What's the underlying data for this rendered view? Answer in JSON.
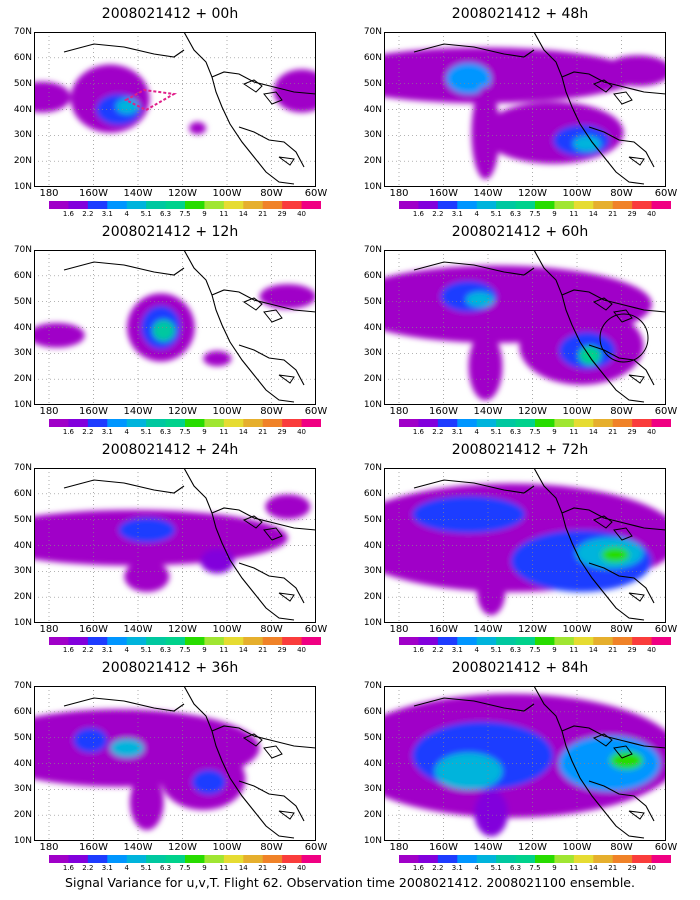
{
  "caption": "Signal Variance for u,v,T. Flight 62. Observation time 2008021412. 2008021100 ensemble.",
  "lat_labels": [
    "70N",
    "60N",
    "50N",
    "40N",
    "30N",
    "20N",
    "10N"
  ],
  "lon_labels": [
    "180",
    "160W",
    "140W",
    "120W",
    "100W",
    "80W",
    "60W"
  ],
  "colorbar": {
    "labels": [
      "1.6",
      "2.2",
      "3.1",
      "4",
      "5.1",
      "6.3",
      "7.5",
      "9",
      "11",
      "14",
      "21",
      "29",
      "40"
    ],
    "colors": [
      "#a000c8",
      "#8200dc",
      "#1e3cff",
      "#0096ff",
      "#00b4dc",
      "#00c8a0",
      "#00d28c",
      "#28dc00",
      "#a0e632",
      "#e6dc32",
      "#e6af2d",
      "#f08228",
      "#fa3c3c",
      "#f00082"
    ]
  },
  "panels": [
    {
      "id": "p00",
      "title": "2008021412 + 00h"
    },
    {
      "id": "p48",
      "title": "2008021412 + 48h"
    },
    {
      "id": "p12",
      "title": "2008021412 + 12h"
    },
    {
      "id": "p60",
      "title": "2008021412 + 60h"
    },
    {
      "id": "p24",
      "title": "2008021412 + 24h"
    },
    {
      "id": "p72",
      "title": "2008021412 + 72h"
    },
    {
      "id": "p36",
      "title": "2008021412 + 36h"
    },
    {
      "id": "p84",
      "title": "2008021412 + 84h"
    }
  ]
}
